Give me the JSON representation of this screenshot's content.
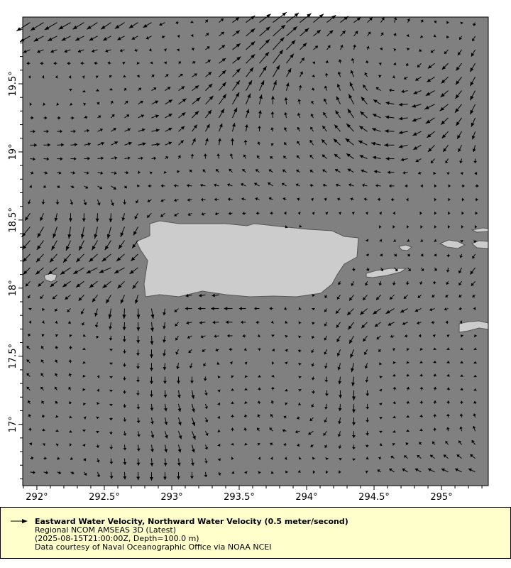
{
  "chart_data": {
    "type": "vector-map",
    "title": "Eastward Water Velocity, Northward Water Velocity (0.5 meter/second)",
    "reference_vector_mps": 0.5,
    "xlim": [
      291.895,
      295.347
    ],
    "ylim": [
      16.55,
      19.99
    ],
    "x_ticks": [
      "292°",
      "292.5°",
      "293°",
      "293.5°",
      "294°",
      "294.5°",
      "295°"
    ],
    "x_tick_values": [
      292,
      292.5,
      293,
      293.5,
      294,
      294.5,
      295
    ],
    "y_ticks": [
      "17°",
      "17.5°",
      "18°",
      "18.5°",
      "19°",
      "19.5°"
    ],
    "y_tick_values": [
      17,
      17.5,
      18,
      18.5,
      19,
      19.5
    ],
    "grid": false,
    "colors": {
      "ocean": "#808080",
      "land": "#cccccc",
      "coast": "#555555",
      "vector": "#000000",
      "legend_bg": "#ffffcc"
    },
    "vector_grid": {
      "lon": [
        291.95,
        292.25,
        292.55,
        292.85,
        293.15,
        293.45,
        293.75,
        294.05,
        294.35,
        294.65,
        294.95,
        295.25
      ],
      "lat": [
        19.95,
        19.65,
        19.35,
        19.05,
        18.75,
        18.45,
        18.15,
        17.85,
        17.55,
        17.25,
        16.95,
        16.65
      ],
      "u": [
        [
          -0.4,
          -0.35,
          -0.3,
          -0.25,
          0,
          0.2,
          0.4,
          0.3,
          0.2,
          0.05,
          0.05,
          -0.05
        ],
        [
          -0.1,
          -0.1,
          -0.1,
          0.02,
          0.1,
          0.25,
          0.3,
          0.05,
          -0.05,
          0.05,
          -0.2,
          -0.15
        ],
        [
          0.05,
          0.05,
          0.05,
          0.2,
          0.25,
          0.2,
          0,
          -0.05,
          -0.15,
          -0.25,
          -0.3,
          -0.15
        ],
        [
          0.2,
          0.2,
          0.2,
          0.25,
          0.1,
          0,
          -0.05,
          -0.1,
          -0.25,
          -0.3,
          -0.2,
          -0.05
        ],
        [
          0.05,
          0.1,
          0.15,
          -0.1,
          -0.15,
          -0.15,
          -0.15,
          -0.1,
          -0.15,
          -0.15,
          0.05,
          0.1
        ],
        [
          -0.25,
          -0.05,
          -0.1,
          -0.15,
          -0.1,
          -0.1,
          -0.05,
          0,
          0,
          0.02,
          0.05,
          0.05
        ],
        [
          -0.2,
          -0.3,
          -0.35,
          -0.2,
          -0.15,
          -0.15,
          -0.1,
          -0.05,
          0,
          0.1,
          0.05,
          -0.15
        ],
        [
          0,
          -0.1,
          -0.05,
          0.05,
          -0.2,
          -0.25,
          -0.1,
          0,
          -0.2,
          -0.25,
          -0.15,
          -0.05
        ],
        [
          -0.1,
          0,
          0,
          0,
          -0.1,
          -0.1,
          0.05,
          -0.05,
          -0.1,
          -0.05,
          0,
          0
        ],
        [
          -0.1,
          -0.05,
          0,
          0,
          0.05,
          0,
          0,
          0,
          0,
          0.02,
          0.02,
          0
        ],
        [
          0,
          0,
          0,
          0.05,
          0.1,
          0,
          -0.1,
          -0.15,
          0,
          0,
          0,
          -0.05
        ],
        [
          0.15,
          0.1,
          0.02,
          0,
          0,
          0.05,
          -0.05,
          0.05,
          0,
          -0.15,
          -0.2,
          -0.2
        ]
      ],
      "v": [
        [
          -0.25,
          -0.2,
          -0.2,
          -0.15,
          0.05,
          0.15,
          0.3,
          0.25,
          0.15,
          0.15,
          0.05,
          -0.1
        ],
        [
          0,
          0,
          0.02,
          0.05,
          0.05,
          0.2,
          0.4,
          0.05,
          0.15,
          -0.05,
          -0.15,
          -0.25
        ],
        [
          0,
          -0.02,
          0.1,
          0.1,
          0.2,
          0.35,
          0.25,
          0.1,
          0.3,
          0.05,
          -0.15,
          -0.3
        ],
        [
          0,
          0.02,
          0.1,
          0.03,
          0.2,
          0.2,
          0.05,
          0.15,
          0.2,
          0,
          -0.2,
          -0.2
        ],
        [
          -0.05,
          -0.05,
          -0.1,
          0,
          0.02,
          0.05,
          0.1,
          0.03,
          0.05,
          0,
          0,
          0
        ],
        [
          -0.3,
          -0.35,
          -0.35,
          -0.2,
          -0.1,
          -0.05,
          -0.05,
          0,
          0,
          0,
          0,
          0
        ],
        [
          -0.2,
          -0.2,
          -0.15,
          -0.2,
          -0.1,
          -0.05,
          0,
          -0.05,
          -0.1,
          -0.1,
          -0.1,
          -0.2
        ],
        [
          -0.05,
          -0.1,
          -0.3,
          -0.3,
          0,
          0,
          0,
          -0.05,
          -0.2,
          -0.15,
          -0.05,
          0
        ],
        [
          0.1,
          0.1,
          -0.05,
          -0.25,
          -0.1,
          0,
          -0.05,
          -0.1,
          -0.25,
          0.02,
          0.05,
          0.05
        ],
        [
          0.1,
          0.1,
          -0.05,
          -0.2,
          -0.25,
          0.05,
          0.1,
          -0.1,
          -0.3,
          0.1,
          0.1,
          0.05
        ],
        [
          0.1,
          0.02,
          -0.1,
          -0.2,
          -0.25,
          0.1,
          0.1,
          -0.1,
          -0.2,
          0.02,
          0.1,
          0.15
        ],
        [
          -0.02,
          -0.05,
          -0.2,
          -0.25,
          -0.2,
          -0.05,
          -0.05,
          0,
          0,
          0.1,
          0.1,
          0.1
        ]
      ]
    }
  },
  "legend": {
    "icon": "arrow-right-icon",
    "title": "Eastward Water Velocity, Northward Water Velocity (0.5 meter/second)",
    "line2": "Regional NCOM AMSEAS 3D (Latest)",
    "line3": "(2025-08-15T21:00:00Z, Depth=100.0 m)",
    "line4": "Data courtesy of Naval Oceanographic Office via NOAA NCEI"
  }
}
